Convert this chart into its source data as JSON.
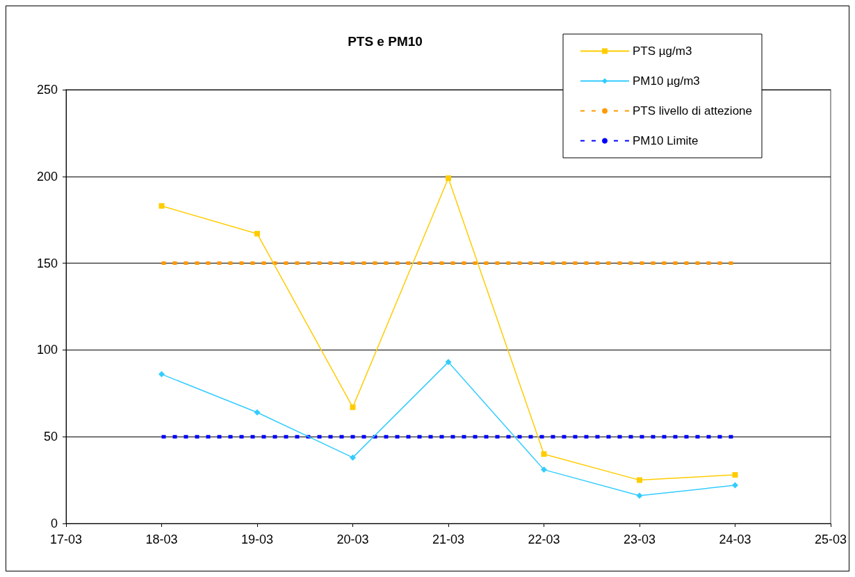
{
  "chart_data": {
    "type": "line",
    "title": "PTS e PM10",
    "x": [
      "--03-18",
      "--03-19",
      "--03-20",
      "--03-21",
      "--03-22",
      "--03-23",
      "--03-24"
    ],
    "xlim": [
      "--03-17",
      "--03-25"
    ],
    "xticks": [
      {
        "value": "--03-17",
        "label": "17-03"
      },
      {
        "value": "--03-18",
        "label": "18-03"
      },
      {
        "value": "--03-19",
        "label": "19-03"
      },
      {
        "value": "--03-20",
        "label": "20-03"
      },
      {
        "value": "--03-21",
        "label": "21-03"
      },
      {
        "value": "--03-22",
        "label": "22-03"
      },
      {
        "value": "--03-23",
        "label": "23-03"
      },
      {
        "value": "--03-24",
        "label": "24-03"
      },
      {
        "value": "--03-25",
        "label": "25-03"
      }
    ],
    "ylim": [
      0,
      250
    ],
    "yticks": [
      0,
      50,
      100,
      150,
      200,
      250
    ],
    "series": [
      {
        "name": "PTS µg/m3",
        "color": "#ffcc00",
        "marker": "square",
        "line_style": "solid",
        "values": [
          183,
          167,
          67,
          199,
          40,
          25,
          28
        ]
      },
      {
        "name": "PM10 µg/m3",
        "color": "#33ccff",
        "marker": "diamond",
        "line_style": "solid",
        "values": [
          86,
          64,
          38,
          93,
          31,
          16,
          22
        ]
      },
      {
        "name": "PTS livello di attezione",
        "color": "#ff9900",
        "marker": "none",
        "line_style": "dashed",
        "values": [
          150,
          150,
          150,
          150,
          150,
          150,
          150
        ]
      },
      {
        "name": "PM10 Limite",
        "color": "#0000ff",
        "marker": "none",
        "line_style": "dashed",
        "values": [
          50,
          50,
          50,
          50,
          50,
          50,
          50
        ]
      }
    ],
    "grid": "y",
    "legend": "top right"
  }
}
